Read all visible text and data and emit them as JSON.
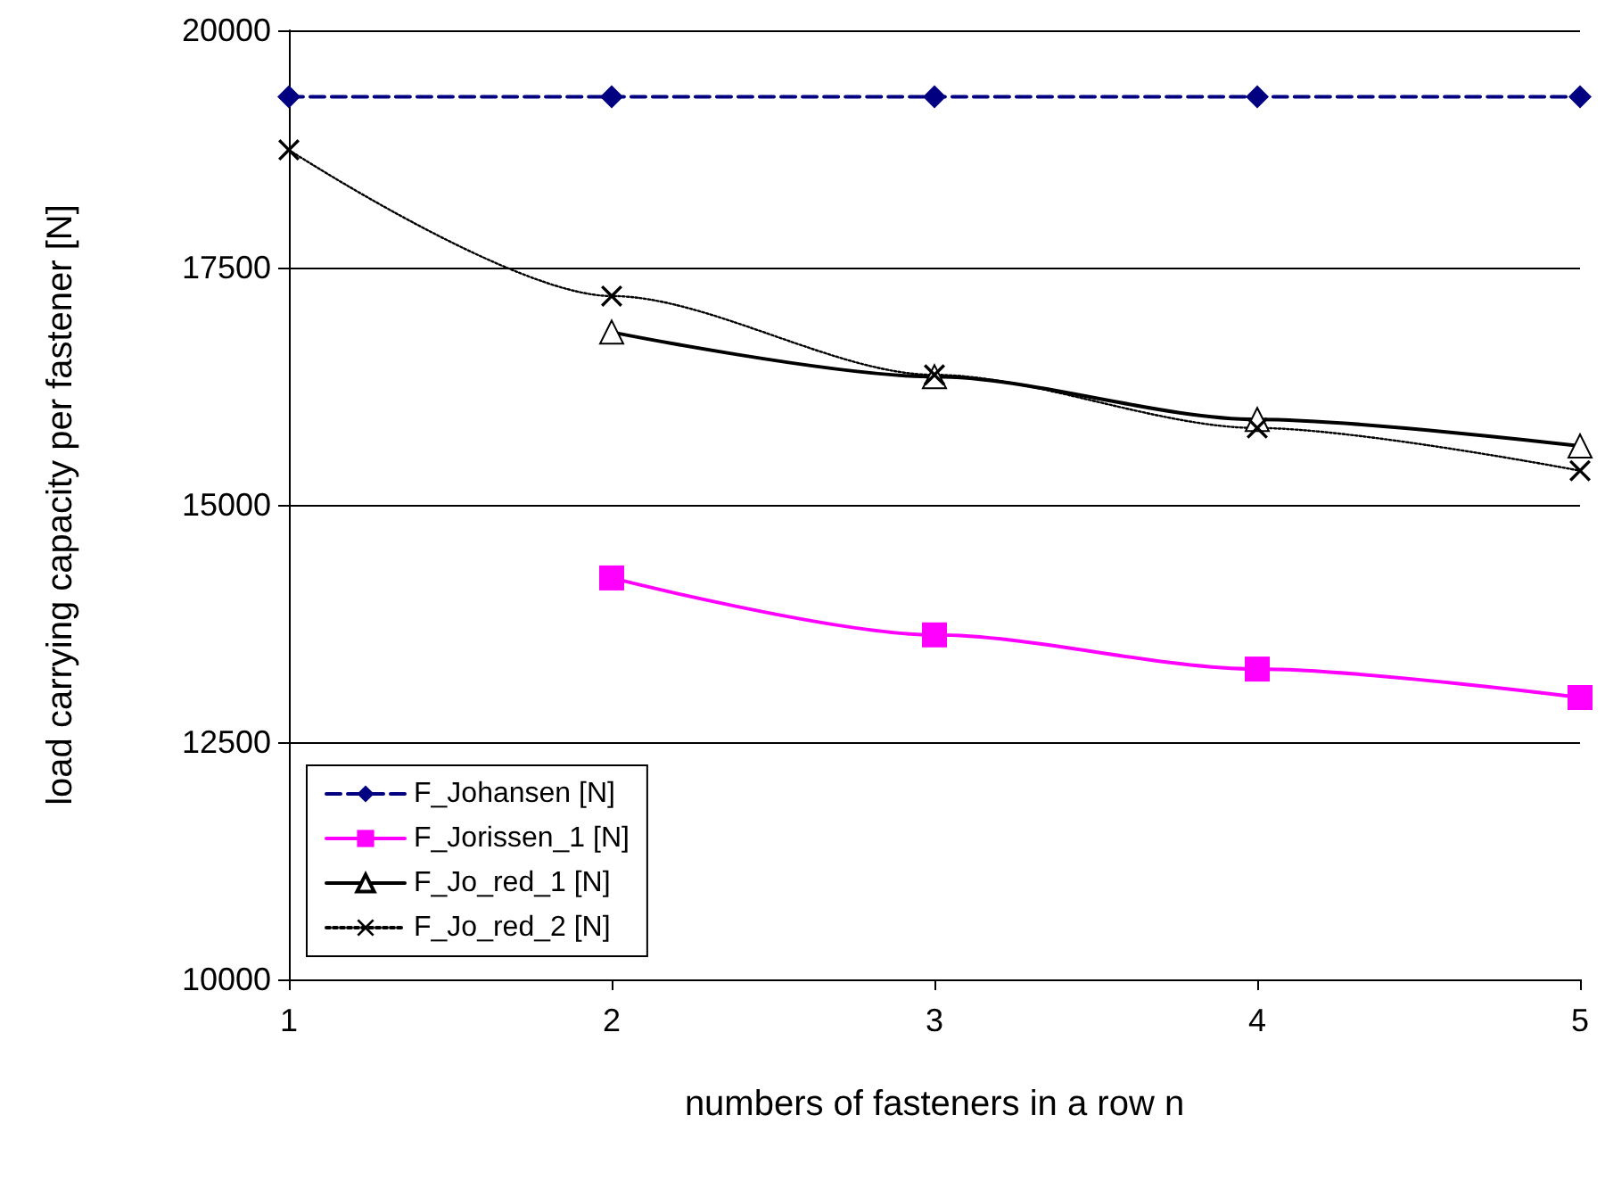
{
  "chart_data": {
    "type": "line",
    "xlabel": "numbers of fasteners in a row n",
    "ylabel": "load carrying capacity per fastener [N]",
    "x": [
      1,
      2,
      3,
      4,
      5
    ],
    "xlim": [
      1,
      5
    ],
    "xticks": [
      1,
      2,
      3,
      4,
      5
    ],
    "ylim": [
      10000,
      20000
    ],
    "yticks": [
      10000,
      12500,
      15000,
      17500,
      20000
    ],
    "grid": "y",
    "legend": "bottom left",
    "series": [
      {
        "name": "F_Johansen [N]",
        "color": "#000080",
        "marker": "diamond",
        "line_style": "dashed",
        "values": [
          19300,
          19300,
          19300,
          19300,
          19300
        ]
      },
      {
        "name": "F_Jorissen_1 [N]",
        "color": "#ff00ff",
        "marker": "square",
        "line_style": "solid",
        "values": [
          null,
          14230,
          13630,
          13270,
          12970
        ]
      },
      {
        "name": "F_Jo_red_1 [N]",
        "color": "#000000",
        "marker": "triangle",
        "line_style": "solid",
        "values": [
          null,
          16820,
          16350,
          15900,
          15620
        ]
      },
      {
        "name": "F_Jo_red_2 [N]",
        "color": "#000000",
        "marker": "cross",
        "line_style": "dotted",
        "values": [
          18740,
          17200,
          16370,
          15810,
          15360
        ]
      }
    ]
  }
}
